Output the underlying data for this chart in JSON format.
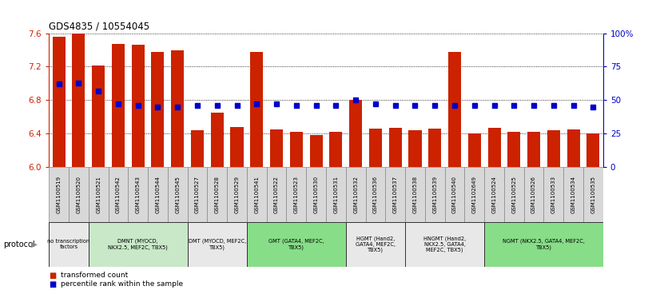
{
  "title": "GDS4835 / 10554045",
  "samples": [
    "GSM1100519",
    "GSM1100520",
    "GSM1100521",
    "GSM1100542",
    "GSM1100543",
    "GSM1100544",
    "GSM1100545",
    "GSM1100527",
    "GSM1100528",
    "GSM1100529",
    "GSM1100541",
    "GSM1100522",
    "GSM1100523",
    "GSM1100530",
    "GSM1100531",
    "GSM1100532",
    "GSM1100536",
    "GSM1100537",
    "GSM1100538",
    "GSM1100539",
    "GSM1100540",
    "GSM1102649",
    "GSM1100524",
    "GSM1100525",
    "GSM1100526",
    "GSM1100533",
    "GSM1100534",
    "GSM1100535"
  ],
  "bar_values": [
    7.56,
    7.6,
    7.21,
    7.47,
    7.46,
    7.38,
    7.4,
    6.44,
    6.65,
    6.48,
    7.38,
    6.45,
    6.42,
    6.38,
    6.42,
    6.8,
    6.46,
    6.47,
    6.44,
    6.46,
    7.38,
    6.4,
    6.47,
    6.42,
    6.42,
    6.44,
    6.45,
    6.4
  ],
  "percentile_values": [
    62,
    63,
    57,
    47,
    46,
    45,
    45,
    46,
    46,
    46,
    47,
    47,
    46,
    46,
    46,
    50,
    47,
    46,
    46,
    46,
    46,
    46,
    46,
    46,
    46,
    46,
    46,
    45
  ],
  "ylim_left": [
    6.0,
    7.6
  ],
  "ylim_right": [
    0,
    100
  ],
  "yticks_left": [
    6.0,
    6.4,
    6.8,
    7.2,
    7.6
  ],
  "yticks_right": [
    0,
    25,
    50,
    75,
    100
  ],
  "bar_color": "#CC2200",
  "dot_color": "#0000CC",
  "groups": [
    {
      "label": "no transcription\nfactors",
      "start": 0,
      "end": 2,
      "color": "#E8E8E8"
    },
    {
      "label": "DMNT (MYOCD,\nNKX2.5, MEF2C, TBX5)",
      "start": 2,
      "end": 7,
      "color": "#C8E8C8"
    },
    {
      "label": "DMT (MYOCD, MEF2C,\nTBX5)",
      "start": 7,
      "end": 10,
      "color": "#E8E8E8"
    },
    {
      "label": "GMT (GATA4, MEF2C,\nTBX5)",
      "start": 10,
      "end": 15,
      "color": "#88DD88"
    },
    {
      "label": "HGMT (Hand2,\nGATA4, MEF2C,\nTBX5)",
      "start": 15,
      "end": 18,
      "color": "#E8E8E8"
    },
    {
      "label": "HNGMT (Hand2,\nNKX2.5, GATA4,\nMEF2C, TBX5)",
      "start": 18,
      "end": 22,
      "color": "#E8E8E8"
    },
    {
      "label": "NGMT (NKX2.5, GATA4, MEF2C,\nTBX5)",
      "start": 22,
      "end": 28,
      "color": "#88DD88"
    }
  ],
  "legend_items": [
    {
      "label": "transformed count",
      "color": "#CC2200"
    },
    {
      "label": "percentile rank within the sample",
      "color": "#0000CC"
    }
  ],
  "protocol_label": "protocol"
}
